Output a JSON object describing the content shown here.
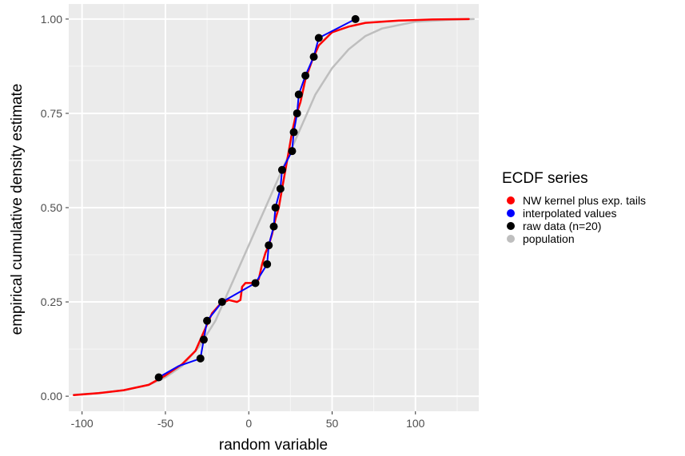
{
  "chart_data": {
    "type": "line",
    "xlabel": "random variable",
    "ylabel": "empirical cumulative density estimate",
    "xlim": [
      -108,
      138
    ],
    "ylim": [
      -0.04,
      1.04
    ],
    "xticks": [
      -100,
      -50,
      0,
      50,
      100
    ],
    "xtick_labels": [
      "-100",
      "-50",
      "0",
      "50",
      "100"
    ],
    "yticks": [
      0,
      0.25,
      0.5,
      0.75,
      1
    ],
    "ytick_labels": [
      "0.00",
      "0.25",
      "0.50",
      "0.75",
      "1.00"
    ],
    "grid": true,
    "legend": {
      "title": "ECDF series",
      "position": "right",
      "entries": [
        {
          "label": "NW kernel plus exp. tails",
          "color": "#ff0000"
        },
        {
          "label": "interpolated values",
          "color": "#0000ff"
        },
        {
          "label": "raw data (n=20)",
          "color": "#000000"
        },
        {
          "label": "population",
          "color": "#bebebe"
        }
      ]
    },
    "series": [
      {
        "name": "population",
        "color": "#bebebe",
        "points": [
          [
            -105,
            0.004
          ],
          [
            -90,
            0.008
          ],
          [
            -75,
            0.016
          ],
          [
            -60,
            0.03
          ],
          [
            -50,
            0.05
          ],
          [
            -40,
            0.08
          ],
          [
            -30,
            0.13
          ],
          [
            -20,
            0.2
          ],
          [
            -10,
            0.3
          ],
          [
            0,
            0.4
          ],
          [
            5,
            0.45
          ],
          [
            10,
            0.5
          ],
          [
            15,
            0.55
          ],
          [
            20,
            0.6
          ],
          [
            30,
            0.7
          ],
          [
            40,
            0.8
          ],
          [
            50,
            0.87
          ],
          [
            60,
            0.92
          ],
          [
            70,
            0.955
          ],
          [
            80,
            0.975
          ],
          [
            100,
            0.993
          ],
          [
            120,
            0.998
          ],
          [
            135,
            1.0
          ]
        ]
      },
      {
        "name": "NW kernel plus exp. tails",
        "color": "#ff0000",
        "points": [
          [
            -105,
            0.003
          ],
          [
            -90,
            0.008
          ],
          [
            -75,
            0.016
          ],
          [
            -60,
            0.03
          ],
          [
            -50,
            0.055
          ],
          [
            -40,
            0.085
          ],
          [
            -32,
            0.12
          ],
          [
            -27,
            0.17
          ],
          [
            -22,
            0.22
          ],
          [
            -17,
            0.245
          ],
          [
            -12,
            0.255
          ],
          [
            -7,
            0.25
          ],
          [
            -5,
            0.255
          ],
          [
            -4,
            0.29
          ],
          [
            -2,
            0.3
          ],
          [
            3,
            0.3
          ],
          [
            6,
            0.31
          ],
          [
            8,
            0.35
          ],
          [
            10,
            0.38
          ],
          [
            12,
            0.4
          ],
          [
            14,
            0.43
          ],
          [
            16,
            0.47
          ],
          [
            18,
            0.5
          ],
          [
            20,
            0.55
          ],
          [
            22,
            0.6
          ],
          [
            24,
            0.65
          ],
          [
            26,
            0.7
          ],
          [
            28,
            0.74
          ],
          [
            31,
            0.78
          ],
          [
            34,
            0.84
          ],
          [
            38,
            0.89
          ],
          [
            42,
            0.93
          ],
          [
            50,
            0.965
          ],
          [
            60,
            0.98
          ],
          [
            70,
            0.99
          ],
          [
            90,
            0.996
          ],
          [
            110,
            0.999
          ],
          [
            132,
            1.0
          ]
        ]
      },
      {
        "name": "interpolated values",
        "color": "#0000ff",
        "points": [
          [
            -54,
            0.05
          ],
          [
            -42,
            0.08
          ],
          [
            -29,
            0.1
          ],
          [
            -27,
            0.15
          ],
          [
            -25,
            0.2
          ],
          [
            -16,
            0.25
          ],
          [
            4,
            0.3
          ],
          [
            11,
            0.35
          ],
          [
            12,
            0.4
          ],
          [
            15,
            0.45
          ],
          [
            16,
            0.5
          ],
          [
            19,
            0.55
          ],
          [
            20,
            0.6
          ],
          [
            26,
            0.65
          ],
          [
            27,
            0.7
          ],
          [
            29,
            0.75
          ],
          [
            30,
            0.8
          ],
          [
            34,
            0.85
          ],
          [
            39,
            0.9
          ],
          [
            42,
            0.95
          ],
          [
            64,
            1.0
          ]
        ]
      },
      {
        "name": "raw data (n=20)",
        "color": "#000000",
        "points": [
          [
            -54,
            0.05
          ],
          [
            -29,
            0.1
          ],
          [
            -27,
            0.15
          ],
          [
            -25,
            0.2
          ],
          [
            -16,
            0.25
          ],
          [
            4,
            0.3
          ],
          [
            11,
            0.35
          ],
          [
            12,
            0.4
          ],
          [
            15,
            0.45
          ],
          [
            16,
            0.5
          ],
          [
            19,
            0.55
          ],
          [
            20,
            0.6
          ],
          [
            26,
            0.65
          ],
          [
            27,
            0.7
          ],
          [
            29,
            0.75
          ],
          [
            30,
            0.8
          ],
          [
            34,
            0.85
          ],
          [
            39,
            0.9
          ],
          [
            42,
            0.95
          ],
          [
            64,
            1.0
          ]
        ]
      }
    ]
  }
}
